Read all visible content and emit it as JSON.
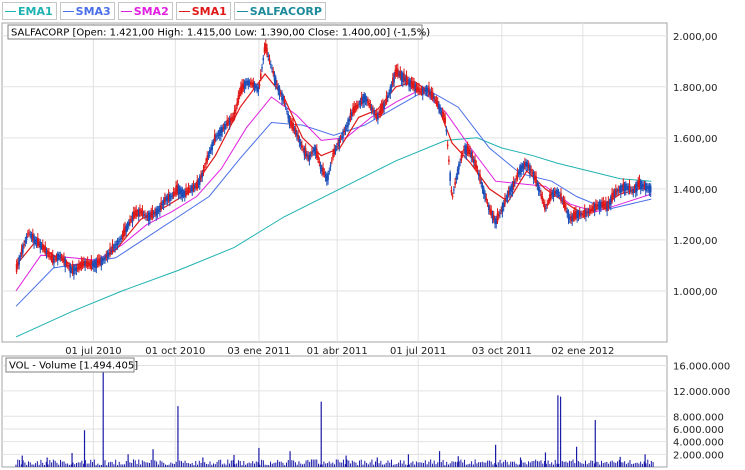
{
  "legend": [
    {
      "label": "EMA1",
      "color": "#1fb2b2"
    },
    {
      "label": "SMA3",
      "color": "#4a6fe8"
    },
    {
      "label": "SMA2",
      "color": "#e020e0"
    },
    {
      "label": "SMA1",
      "color": "#e01818"
    },
    {
      "label": "SALFACORP",
      "color": "#1c8a9a"
    }
  ],
  "price_panel": {
    "info": "SALFACORP [Open: 1.421,00  High: 1.415,00  Low: 1.390,00  Close: 1.400,00] (-1,5%)"
  },
  "volume_panel": {
    "info": "VOL - Volume [1.494.405]"
  },
  "chart_data": [
    {
      "type": "line",
      "title": "SALFACORP",
      "x_tick_labels": [
        "01 jul 2010",
        "01 oct 2010",
        "03 ene 2011",
        "01 abr 2011",
        "01 jul 2011",
        "03 oct 2011",
        "02 ene 2012"
      ],
      "y_tick_labels": [
        "1.000,00",
        "1.200,00",
        "1.400,00",
        "1.600,00",
        "1.800,00",
        "2.000,00"
      ],
      "ylim": [
        800,
        2050
      ],
      "grid": true,
      "legend_position": "top-left",
      "x_range": [
        "2010-04-05",
        "2012-03-22"
      ],
      "series": [
        {
          "name": "SALFACORP",
          "color": "#1c4fb8",
          "points": [
            [
              "2010-04-05",
              1080
            ],
            [
              "2010-04-12",
              1160
            ],
            [
              "2010-04-19",
              1230
            ],
            [
              "2010-04-26",
              1200
            ],
            [
              "2010-05-03",
              1180
            ],
            [
              "2010-05-10",
              1150
            ],
            [
              "2010-05-17",
              1120
            ],
            [
              "2010-05-24",
              1140
            ],
            [
              "2010-05-31",
              1110
            ],
            [
              "2010-06-07",
              1080
            ],
            [
              "2010-06-14",
              1090
            ],
            [
              "2010-06-21",
              1110
            ],
            [
              "2010-06-28",
              1100
            ],
            [
              "2010-07-05",
              1110
            ],
            [
              "2010-07-12",
              1120
            ],
            [
              "2010-07-19",
              1150
            ],
            [
              "2010-07-26",
              1180
            ],
            [
              "2010-08-02",
              1210
            ],
            [
              "2010-08-09",
              1260
            ],
            [
              "2010-08-16",
              1300
            ],
            [
              "2010-08-23",
              1310
            ],
            [
              "2010-08-30",
              1290
            ],
            [
              "2010-09-06",
              1300
            ],
            [
              "2010-09-13",
              1320
            ],
            [
              "2010-09-20",
              1360
            ],
            [
              "2010-09-27",
              1370
            ],
            [
              "2010-10-04",
              1400
            ],
            [
              "2010-10-11",
              1380
            ],
            [
              "2010-10-18",
              1400
            ],
            [
              "2010-10-25",
              1410
            ],
            [
              "2010-11-01",
              1460
            ],
            [
              "2010-11-08",
              1540
            ],
            [
              "2010-11-15",
              1600
            ],
            [
              "2010-11-22",
              1630
            ],
            [
              "2010-11-29",
              1660
            ],
            [
              "2010-12-06",
              1680
            ],
            [
              "2010-12-13",
              1780
            ],
            [
              "2010-12-20",
              1820
            ],
            [
              "2010-12-27",
              1810
            ],
            [
              "2011-01-03",
              1790
            ],
            [
              "2011-01-10",
              1960
            ],
            [
              "2011-01-17",
              1880
            ],
            [
              "2011-01-24",
              1800
            ],
            [
              "2011-01-31",
              1750
            ],
            [
              "2011-02-07",
              1660
            ],
            [
              "2011-02-14",
              1620
            ],
            [
              "2011-02-21",
              1560
            ],
            [
              "2011-02-28",
              1520
            ],
            [
              "2011-03-07",
              1560
            ],
            [
              "2011-03-14",
              1480
            ],
            [
              "2011-03-21",
              1440
            ],
            [
              "2011-03-28",
              1540
            ],
            [
              "2011-04-04",
              1590
            ],
            [
              "2011-04-11",
              1640
            ],
            [
              "2011-04-18",
              1700
            ],
            [
              "2011-04-25",
              1730
            ],
            [
              "2011-05-02",
              1760
            ],
            [
              "2011-05-09",
              1720
            ],
            [
              "2011-05-16",
              1680
            ],
            [
              "2011-05-23",
              1720
            ],
            [
              "2011-05-30",
              1780
            ],
            [
              "2011-06-06",
              1860
            ],
            [
              "2011-06-13",
              1840
            ],
            [
              "2011-06-20",
              1820
            ],
            [
              "2011-06-27",
              1800
            ],
            [
              "2011-07-04",
              1780
            ],
            [
              "2011-07-11",
              1790
            ],
            [
              "2011-07-18",
              1760
            ],
            [
              "2011-07-25",
              1720
            ],
            [
              "2011-08-01",
              1660
            ],
            [
              "2011-08-08",
              1360
            ],
            [
              "2011-08-15",
              1480
            ],
            [
              "2011-08-22",
              1560
            ],
            [
              "2011-08-29",
              1540
            ],
            [
              "2011-09-05",
              1480
            ],
            [
              "2011-09-12",
              1400
            ],
            [
              "2011-09-19",
              1320
            ],
            [
              "2011-09-26",
              1270
            ],
            [
              "2011-10-03",
              1320
            ],
            [
              "2011-10-10",
              1380
            ],
            [
              "2011-10-17",
              1420
            ],
            [
              "2011-10-24",
              1480
            ],
            [
              "2011-10-31",
              1500
            ],
            [
              "2011-11-07",
              1460
            ],
            [
              "2011-11-14",
              1400
            ],
            [
              "2011-11-21",
              1320
            ],
            [
              "2011-11-28",
              1380
            ],
            [
              "2011-12-05",
              1390
            ],
            [
              "2011-12-12",
              1340
            ],
            [
              "2011-12-19",
              1280
            ],
            [
              "2011-12-26",
              1300
            ],
            [
              "2012-01-02",
              1300
            ],
            [
              "2012-01-09",
              1310
            ],
            [
              "2012-01-16",
              1330
            ],
            [
              "2012-01-23",
              1340
            ],
            [
              "2012-01-30",
              1330
            ],
            [
              "2012-02-06",
              1380
            ],
            [
              "2012-02-13",
              1400
            ],
            [
              "2012-02-20",
              1410
            ],
            [
              "2012-02-27",
              1390
            ],
            [
              "2012-03-05",
              1420
            ],
            [
              "2012-03-12",
              1410
            ],
            [
              "2012-03-19",
              1400
            ]
          ]
        },
        {
          "name": "SMA1",
          "color": "#e01818",
          "points": [
            [
              "2010-04-05",
              1100
            ],
            [
              "2010-04-26",
              1190
            ],
            [
              "2010-05-17",
              1140
            ],
            [
              "2010-06-07",
              1100
            ],
            [
              "2010-07-05",
              1110
            ],
            [
              "2010-07-26",
              1160
            ],
            [
              "2010-08-23",
              1280
            ],
            [
              "2010-09-20",
              1330
            ],
            [
              "2010-10-18",
              1390
            ],
            [
              "2010-11-15",
              1530
            ],
            [
              "2010-12-13",
              1720
            ],
            [
              "2011-01-10",
              1850
            ],
            [
              "2011-01-31",
              1760
            ],
            [
              "2011-02-21",
              1600
            ],
            [
              "2011-03-14",
              1530
            ],
            [
              "2011-04-04",
              1560
            ],
            [
              "2011-04-25",
              1680
            ],
            [
              "2011-05-16",
              1710
            ],
            [
              "2011-06-06",
              1800
            ],
            [
              "2011-06-27",
              1820
            ],
            [
              "2011-07-18",
              1770
            ],
            [
              "2011-08-08",
              1580
            ],
            [
              "2011-08-29",
              1500
            ],
            [
              "2011-09-19",
              1400
            ],
            [
              "2011-10-10",
              1350
            ],
            [
              "2011-10-31",
              1470
            ],
            [
              "2011-11-21",
              1400
            ],
            [
              "2011-12-12",
              1350
            ],
            [
              "2012-01-02",
              1300
            ],
            [
              "2012-01-23",
              1330
            ],
            [
              "2012-02-13",
              1380
            ],
            [
              "2012-03-05",
              1400
            ],
            [
              "2012-03-19",
              1405
            ]
          ]
        },
        {
          "name": "SMA2",
          "color": "#e020e0",
          "points": [
            [
              "2010-04-05",
              1000
            ],
            [
              "2010-05-03",
              1140
            ],
            [
              "2010-06-07",
              1130
            ],
            [
              "2010-07-05",
              1120
            ],
            [
              "2010-08-02",
              1180
            ],
            [
              "2010-08-30",
              1260
            ],
            [
              "2010-09-27",
              1310
            ],
            [
              "2010-10-25",
              1370
            ],
            [
              "2010-11-22",
              1480
            ],
            [
              "2010-12-20",
              1640
            ],
            [
              "2011-01-17",
              1760
            ],
            [
              "2011-02-14",
              1690
            ],
            [
              "2011-03-14",
              1590
            ],
            [
              "2011-04-11",
              1600
            ],
            [
              "2011-05-09",
              1680
            ],
            [
              "2011-06-06",
              1740
            ],
            [
              "2011-07-04",
              1790
            ],
            [
              "2011-08-01",
              1700
            ],
            [
              "2011-08-29",
              1560
            ],
            [
              "2011-09-26",
              1430
            ],
            [
              "2011-10-24",
              1420
            ],
            [
              "2011-11-21",
              1410
            ],
            [
              "2011-12-19",
              1340
            ],
            [
              "2012-01-16",
              1310
            ],
            [
              "2012-02-13",
              1340
            ],
            [
              "2012-03-19",
              1380
            ]
          ]
        },
        {
          "name": "SMA3",
          "color": "#4a6fe8",
          "points": [
            [
              "2010-04-05",
              940
            ],
            [
              "2010-05-17",
              1090
            ],
            [
              "2010-06-21",
              1110
            ],
            [
              "2010-07-26",
              1130
            ],
            [
              "2010-08-30",
              1210
            ],
            [
              "2010-10-04",
              1290
            ],
            [
              "2010-11-08",
              1370
            ],
            [
              "2010-12-13",
              1520
            ],
            [
              "2011-01-17",
              1660
            ],
            [
              "2011-02-21",
              1650
            ],
            [
              "2011-03-28",
              1610
            ],
            [
              "2011-05-02",
              1650
            ],
            [
              "2011-06-06",
              1720
            ],
            [
              "2011-07-11",
              1790
            ],
            [
              "2011-08-15",
              1720
            ],
            [
              "2011-09-19",
              1560
            ],
            [
              "2011-10-24",
              1460
            ],
            [
              "2011-11-28",
              1430
            ],
            [
              "2011-12-26",
              1370
            ],
            [
              "2012-01-30",
              1320
            ],
            [
              "2012-03-19",
              1360
            ]
          ]
        },
        {
          "name": "EMA1",
          "color": "#1fb2b2",
          "points": [
            [
              "2010-04-05",
              820
            ],
            [
              "2010-06-07",
              920
            ],
            [
              "2010-08-02",
              1000
            ],
            [
              "2010-10-04",
              1080
            ],
            [
              "2010-12-06",
              1170
            ],
            [
              "2011-01-31",
              1290
            ],
            [
              "2011-04-04",
              1400
            ],
            [
              "2011-06-06",
              1510
            ],
            [
              "2011-08-01",
              1590
            ],
            [
              "2011-09-05",
              1600
            ],
            [
              "2011-10-03",
              1560
            ],
            [
              "2011-11-07",
              1530
            ],
            [
              "2011-12-05",
              1500
            ],
            [
              "2012-01-09",
              1470
            ],
            [
              "2012-02-13",
              1440
            ],
            [
              "2012-03-19",
              1430
            ]
          ]
        }
      ]
    },
    {
      "type": "bar",
      "title": "VOL - Volume [1.494.405]",
      "y_tick_labels": [
        "2.000.000",
        "4.000.000",
        "6.000.000",
        "8.000.000",
        "12.000.000",
        "16.000.000"
      ],
      "ylim": [
        0,
        17500000
      ],
      "grid": true,
      "series": [
        {
          "name": "Volume",
          "color": "#1a1aa8",
          "points": [
            [
              "2010-04-12",
              1800000
            ],
            [
              "2010-05-10",
              1500000
            ],
            [
              "2010-06-07",
              2200000
            ],
            [
              "2010-06-21",
              5800000
            ],
            [
              "2010-07-12",
              17000000
            ],
            [
              "2010-08-09",
              2000000
            ],
            [
              "2010-09-06",
              2800000
            ],
            [
              "2010-10-04",
              9600000
            ],
            [
              "2010-11-01",
              1500000
            ],
            [
              "2010-12-06",
              1900000
            ],
            [
              "2011-01-03",
              3000000
            ],
            [
              "2011-02-07",
              2500000
            ],
            [
              "2011-03-14",
              10300000
            ],
            [
              "2011-04-11",
              1800000
            ],
            [
              "2011-05-16",
              1500000
            ],
            [
              "2011-06-20",
              2000000
            ],
            [
              "2011-07-25",
              2500000
            ],
            [
              "2011-08-15",
              1700000
            ],
            [
              "2011-09-26",
              3500000
            ],
            [
              "2011-10-24",
              1500000
            ],
            [
              "2011-11-21",
              2300000
            ],
            [
              "2011-12-05",
              11300000
            ],
            [
              "2011-12-08",
              11100000
            ],
            [
              "2011-12-26",
              3200000
            ],
            [
              "2012-01-16",
              7400000
            ],
            [
              "2012-02-13",
              1600000
            ],
            [
              "2012-03-12",
              2000000
            ]
          ]
        }
      ]
    }
  ]
}
